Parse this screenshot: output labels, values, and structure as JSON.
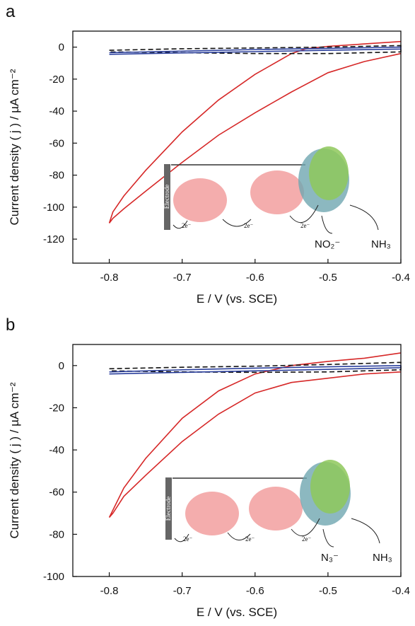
{
  "chart_data": [
    {
      "type": "line",
      "panel_label": "a",
      "x_label": "E / V (vs. SCE)",
      "y_label": "Current density ( j ) / µA cm⁻²",
      "xlim": [
        -0.85,
        -0.4
      ],
      "xticks": [
        -0.8,
        -0.7,
        -0.6,
        -0.5,
        -0.4
      ],
      "ylim": [
        -135,
        10
      ],
      "yticks": [
        0,
        -20,
        -40,
        -60,
        -80,
        -100,
        -120
      ],
      "annotations": [
        "Electrode",
        "2e⁻",
        "2e⁻",
        "2e⁻",
        "NO₂⁻",
        "NH₃"
      ],
      "series": [
        {
          "color": "#d62828",
          "dash": false,
          "x": [
            -0.4,
            -0.45,
            -0.5,
            -0.53,
            -0.55,
            -0.6,
            -0.65,
            -0.7,
            -0.75,
            -0.78,
            -0.795,
            -0.8,
            -0.795,
            -0.78,
            -0.75,
            -0.7,
            -0.65,
            -0.6,
            -0.55,
            -0.5,
            -0.45,
            -0.4
          ],
          "values": [
            3.5,
            2,
            0.5,
            -1,
            -4,
            -17,
            -33,
            -53,
            -77,
            -93,
            -103,
            -110,
            -107,
            -101,
            -90,
            -72,
            -55,
            -41,
            -28,
            -16,
            -9,
            -4
          ]
        },
        {
          "color": "#111111",
          "dash": true,
          "x": [
            -0.8,
            -0.7,
            -0.6,
            -0.5,
            -0.4,
            -0.4,
            -0.5,
            -0.6,
            -0.7,
            -0.8
          ],
          "values": [
            -2,
            -1,
            -0.5,
            0,
            1,
            -3,
            -4,
            -4,
            -3.5,
            -3
          ]
        },
        {
          "color": "#2a3f9d",
          "dash": false,
          "x": [
            -0.8,
            -0.7,
            -0.6,
            -0.5,
            -0.4,
            -0.4,
            -0.5,
            -0.6,
            -0.7,
            -0.8
          ],
          "values": [
            -3.5,
            -2.5,
            -1.5,
            -0.8,
            0,
            -1.2,
            -2,
            -2.8,
            -3.6,
            -4.5
          ]
        }
      ]
    },
    {
      "type": "line",
      "panel_label": "b",
      "x_label": "E / V (vs. SCE)",
      "y_label": "Current density ( j ) / µA cm⁻²",
      "xlim": [
        -0.85,
        -0.4
      ],
      "xticks": [
        -0.8,
        -0.7,
        -0.6,
        -0.5,
        -0.4
      ],
      "ylim": [
        -100,
        10
      ],
      "yticks": [
        0,
        -20,
        -40,
        -60,
        -80,
        -100
      ],
      "annotations": [
        "Electrode",
        "2e⁻",
        "2e⁻",
        "2e⁻",
        "N₃⁻",
        "NH₃"
      ],
      "series": [
        {
          "color": "#d62828",
          "dash": false,
          "x": [
            -0.4,
            -0.45,
            -0.5,
            -0.55,
            -0.6,
            -0.65,
            -0.7,
            -0.75,
            -0.78,
            -0.8,
            -0.795,
            -0.78,
            -0.75,
            -0.7,
            -0.65,
            -0.6,
            -0.55,
            -0.5,
            -0.45,
            -0.4
          ],
          "values": [
            6,
            3.5,
            2,
            0,
            -4,
            -12,
            -25,
            -44,
            -58,
            -72,
            -70,
            -62,
            -52,
            -36,
            -23,
            -13,
            -8,
            -6,
            -4,
            -3
          ]
        },
        {
          "color": "#111111",
          "dash": true,
          "x": [
            -0.8,
            -0.7,
            -0.6,
            -0.5,
            -0.4,
            -0.4,
            -0.5,
            -0.6,
            -0.7,
            -0.8
          ],
          "values": [
            -1.5,
            -0.8,
            -0.3,
            0.5,
            1.5,
            -2,
            -3,
            -3.2,
            -3,
            -2.5
          ]
        },
        {
          "color": "#2a3f9d",
          "dash": false,
          "x": [
            -0.8,
            -0.7,
            -0.6,
            -0.5,
            -0.4,
            -0.4,
            -0.5,
            -0.6,
            -0.7,
            -0.8
          ],
          "values": [
            -3,
            -2,
            -1.2,
            -0.6,
            0,
            -1,
            -1.8,
            -2.5,
            -3.2,
            -4
          ]
        }
      ]
    }
  ]
}
